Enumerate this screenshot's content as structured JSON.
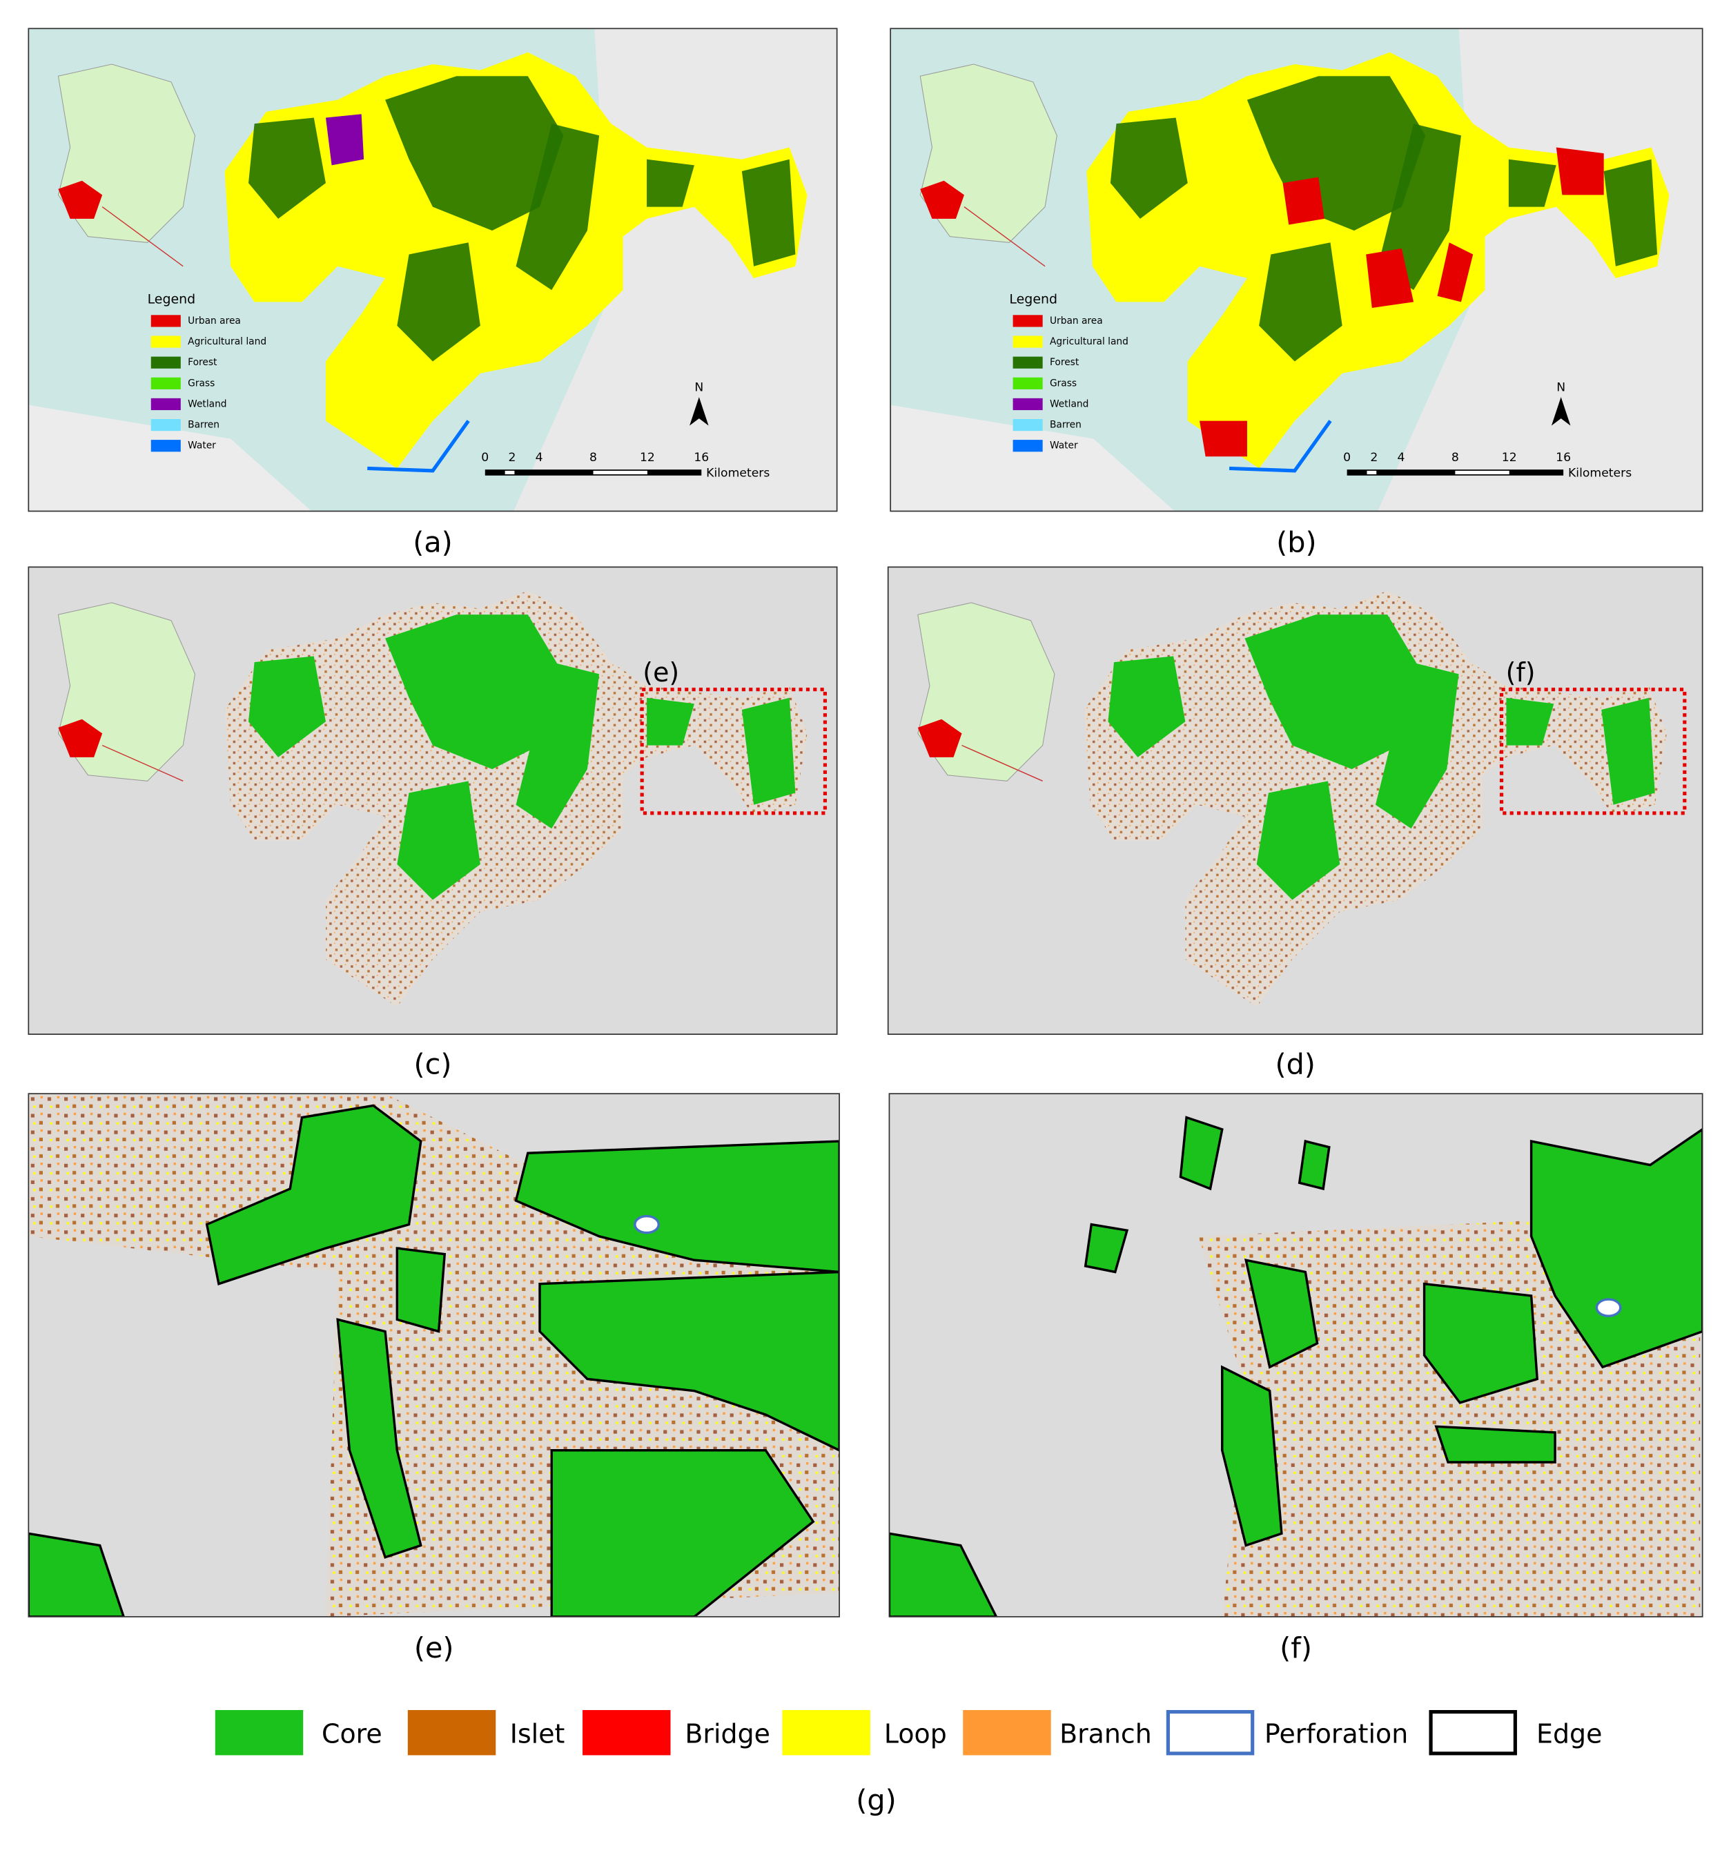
{
  "panels": [
    {
      "label": "(a)",
      "legend_title": "Legend",
      "legend": [
        {
          "name": "Urban area",
          "color": "#e60000"
        },
        {
          "name": "Agricultural land",
          "color": "#ffff00"
        },
        {
          "name": "Forest",
          "color": "#267300"
        },
        {
          "name": "Grass",
          "color": "#4ce600"
        },
        {
          "name": "Wetland",
          "color": "#8400a8"
        },
        {
          "name": "Barren",
          "color": "#73dfff"
        },
        {
          "name": "Water",
          "color": "#0070ff"
        }
      ],
      "scale_ticks": [
        0,
        2,
        4,
        8,
        12,
        16
      ],
      "scale_unit": "Kilometers",
      "north": "N"
    },
    {
      "label": "(b)",
      "legend_title": "Legend",
      "legend": [
        {
          "name": "Urban area",
          "color": "#e60000"
        },
        {
          "name": "Agricultural land",
          "color": "#ffff00"
        },
        {
          "name": "Forest",
          "color": "#267300"
        },
        {
          "name": "Grass",
          "color": "#4ce600"
        },
        {
          "name": "Wetland",
          "color": "#8400a8"
        },
        {
          "name": "Barren",
          "color": "#73dfff"
        },
        {
          "name": "Water",
          "color": "#0070ff"
        }
      ],
      "scale_ticks": [
        0,
        2,
        4,
        8,
        12,
        16
      ],
      "scale_unit": "Kilometers",
      "north": "N"
    },
    {
      "label": "(c)",
      "annotation": "(e)"
    },
    {
      "label": "(d)",
      "annotation": "(f)"
    },
    {
      "label": "(e)"
    },
    {
      "label": "(f)"
    }
  ],
  "legend": {
    "label": "(g)",
    "items": [
      {
        "name": "Core",
        "fill": "#1cc21c",
        "stroke": "#1cc21c"
      },
      {
        "name": "Islet",
        "fill": "#cc6600",
        "stroke": "#cc6600"
      },
      {
        "name": "Bridge",
        "fill": "#ff0000",
        "stroke": "#ff0000"
      },
      {
        "name": "Loop",
        "fill": "#ffff00",
        "stroke": "#ffff00"
      },
      {
        "name": "Branch",
        "fill": "#ff9933",
        "stroke": "#ff9933"
      },
      {
        "name": "Perforation",
        "fill": "#ffffff",
        "stroke": "#4472c4"
      },
      {
        "name": "Edge",
        "fill": "#ffffff",
        "stroke": "#000000"
      }
    ]
  }
}
